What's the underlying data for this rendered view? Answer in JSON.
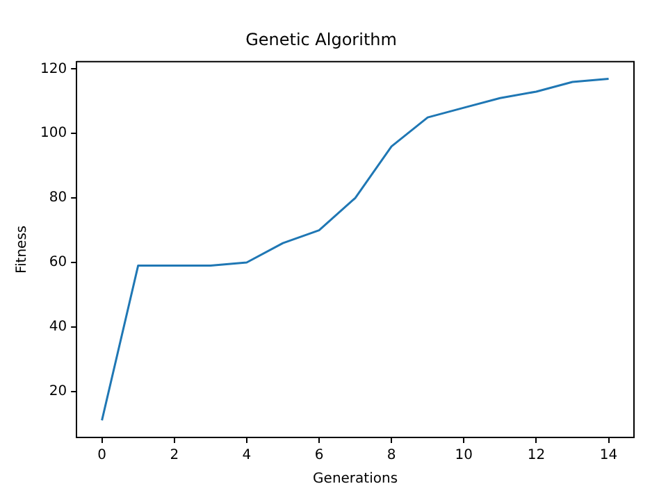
{
  "chart_data": {
    "type": "line",
    "title": "Genetic Algorithm",
    "xlabel": "Generations",
    "ylabel": "Fitness",
    "x": [
      0,
      1,
      2,
      3,
      4,
      5,
      6,
      7,
      8,
      9,
      10,
      11,
      12,
      13,
      14
    ],
    "series": [
      {
        "color": "#1f77b4",
        "values": [
          11,
          59,
          59,
          59,
          60,
          66,
          70,
          80,
          96,
          105,
          108,
          111,
          113,
          116,
          117
        ]
      }
    ],
    "xlim": [
      -0.7,
      14.7
    ],
    "xticks": [
      0,
      2,
      4,
      6,
      8,
      10,
      12,
      14
    ],
    "ylim": [
      5.7,
      122.3
    ],
    "yticks": [
      20,
      40,
      60,
      80,
      100,
      120
    ],
    "grid": false,
    "legend": false,
    "marker": "none",
    "line_style": "solid"
  }
}
